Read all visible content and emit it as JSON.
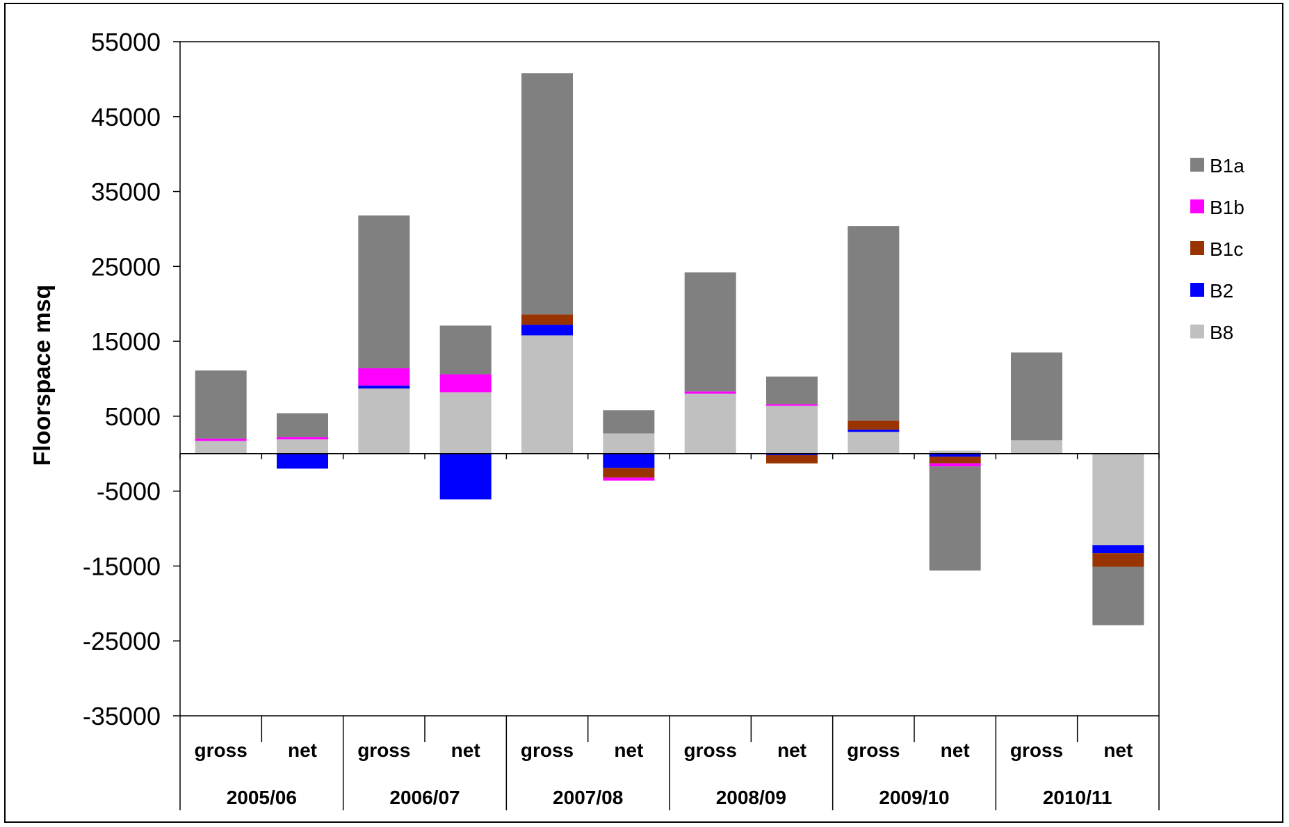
{
  "chart_data": {
    "type": "bar",
    "stacked": true,
    "title": "",
    "xlabel": "",
    "ylabel": "Floorspace msq",
    "ylim": [
      -35000,
      55000
    ],
    "yticks": [
      55000,
      45000,
      35000,
      25000,
      15000,
      5000,
      -5000,
      -15000,
      -25000,
      -35000
    ],
    "grid": false,
    "legend_position": "right",
    "groups": [
      "2005/06",
      "2006/07",
      "2007/08",
      "2008/09",
      "2009/10",
      "2010/11"
    ],
    "categories": [
      "gross",
      "net",
      "gross",
      "net",
      "gross",
      "net",
      "gross",
      "net",
      "gross",
      "net",
      "gross",
      "net"
    ],
    "series": [
      {
        "name": "B8",
        "color": "#c0c0c0",
        "values": [
          1700,
          1900,
          8700,
          8200,
          15800,
          2700,
          8000,
          6400,
          2900,
          400,
          1800,
          -12200
        ]
      },
      {
        "name": "B2",
        "color": "#0000ff",
        "values": [
          0,
          -2000,
          400,
          -6100,
          1400,
          -1900,
          0,
          -200,
          300,
          -400,
          0,
          -1100
        ]
      },
      {
        "name": "B1c",
        "color": "#993300",
        "values": [
          0,
          0,
          0,
          0,
          1400,
          -1300,
          0,
          -1100,
          1200,
          -900,
          0,
          -1800
        ]
      },
      {
        "name": "B1b",
        "color": "#ff00ff",
        "values": [
          300,
          300,
          2300,
          2400,
          0,
          -400,
          300,
          200,
          0,
          -400,
          0,
          0
        ]
      },
      {
        "name": "B1a",
        "color": "#808080",
        "values": [
          9100,
          3200,
          20400,
          6500,
          32200,
          3100,
          15900,
          3700,
          26000,
          -13900,
          11700,
          -7800
        ]
      }
    ]
  }
}
